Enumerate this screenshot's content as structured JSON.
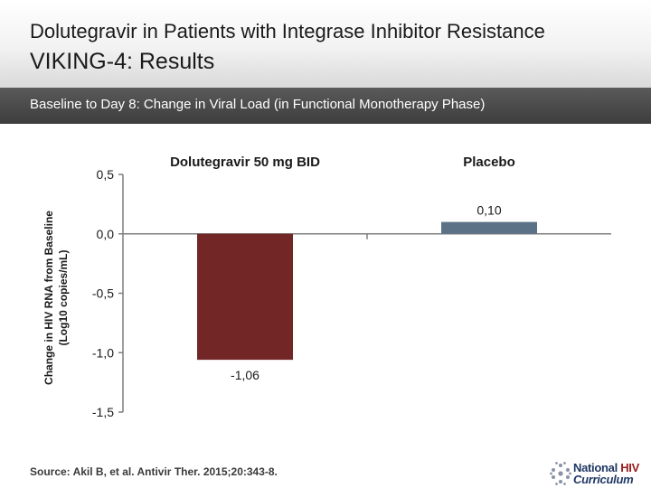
{
  "header": {
    "title_line1": "Dolutegravir in Patients with Integrase Inhibitor Resistance",
    "title_line2": "VIKING-4: Results"
  },
  "subtitle": "Baseline to Day 8: Change in Viral Load (in Functional Monotherapy Phase)",
  "chart_data": {
    "type": "bar",
    "categories": [
      "Dolutegravir 50 mg BID",
      "Placebo"
    ],
    "values": [
      -1.06,
      0.1
    ],
    "value_labels": [
      "-1,06",
      "0,10"
    ],
    "colors": [
      "#722626",
      "#5b7186"
    ],
    "ylabel_line1": "Change in HIV RNA from Baseline",
    "ylabel_line2": "(Log10 copies/mL)",
    "ylim": [
      -1.5,
      0.5
    ],
    "yticks": [
      0.5,
      0.0,
      -0.5,
      -1.0,
      -1.5
    ],
    "ytick_labels": [
      "0,5",
      "0,0",
      "-0,5",
      "-1,0",
      "-1,5"
    ]
  },
  "source": "Source: Akil B, et al. Antivir Ther. 2015;20:343-8.",
  "logo": {
    "line1_a": "National",
    "line1_b": "HIV",
    "line2": "Curriculum",
    "colors": {
      "navy": "#1f3864",
      "red": "#9b1c1c"
    }
  }
}
